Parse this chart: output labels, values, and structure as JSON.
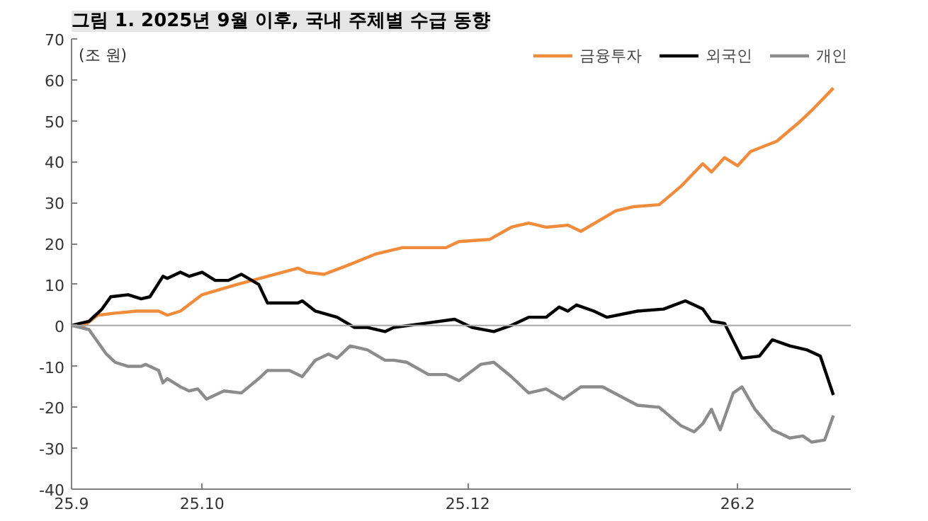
{
  "chart_data": {
    "type": "line",
    "title": "그림 1. 2025년 9월 이후, 국내 주체별 수급 동향",
    "ylabel": "(조 원)",
    "xlim": [
      "2025-09-01",
      "2026-02-27"
    ],
    "xticks": [
      {
        "value": "2025-09-01",
        "label": "25.9"
      },
      {
        "value": "2025-10-01",
        "label": "25.10"
      },
      {
        "value": "2025-12-01",
        "label": "25.12"
      },
      {
        "value": "2026-02-01",
        "label": "26.2"
      }
    ],
    "ylim": [
      -40,
      70
    ],
    "yticks": [
      -40,
      -30,
      -20,
      -10,
      0,
      10,
      20,
      30,
      40,
      50,
      60,
      70
    ],
    "legend": "top right",
    "line_style": "solid",
    "ref_lines": [
      {
        "axis": "y",
        "value": 0,
        "color": "#a6a6a6"
      }
    ],
    "series": [
      {
        "name": "금융투자",
        "color": "#f08c3c",
        "x": [
          "2025-09-01",
          "2025-09-04",
          "2025-09-07",
          "2025-09-11",
          "2025-09-16",
          "2025-09-21",
          "2025-09-23",
          "2025-09-26",
          "2025-10-01",
          "2025-10-09",
          "2025-10-16",
          "2025-10-23",
          "2025-10-25",
          "2025-10-29",
          "2025-11-03",
          "2025-11-10",
          "2025-11-16",
          "2025-11-26",
          "2025-11-29",
          "2025-12-06",
          "2025-12-11",
          "2025-12-15",
          "2025-12-19",
          "2025-12-24",
          "2025-12-27",
          "2026-01-04",
          "2026-01-08",
          "2026-01-14",
          "2026-01-19",
          "2026-01-24",
          "2026-01-26",
          "2026-01-29",
          "2026-02-01",
          "2026-02-04",
          "2026-02-10",
          "2026-02-15",
          "2026-02-18",
          "2026-02-23"
        ],
        "values": [
          0,
          0,
          2.5,
          3,
          3.5,
          3.5,
          2.5,
          3.5,
          7.5,
          10,
          12,
          14,
          13,
          12.5,
          14.5,
          17.5,
          19,
          19,
          20.5,
          21,
          24,
          25,
          24,
          24.5,
          23,
          28,
          29,
          29.5,
          34,
          39.5,
          37.5,
          41,
          39,
          42.5,
          45,
          49.5,
          52.5,
          58
        ]
      },
      {
        "name": "외국인",
        "color": "#000000",
        "x": [
          "2025-09-01",
          "2025-09-05",
          "2025-09-08",
          "2025-09-10",
          "2025-09-14",
          "2025-09-17",
          "2025-09-19",
          "2025-09-22",
          "2025-09-23",
          "2025-09-26",
          "2025-09-28",
          "2025-10-01",
          "2025-10-04",
          "2025-10-07",
          "2025-10-10",
          "2025-10-14",
          "2025-10-16",
          "2025-10-23",
          "2025-10-24",
          "2025-10-27",
          "2025-11-01",
          "2025-11-05",
          "2025-11-08",
          "2025-11-12",
          "2025-11-14",
          "2025-11-21",
          "2025-11-28",
          "2025-12-02",
          "2025-12-07",
          "2025-12-11",
          "2025-12-15",
          "2025-12-19",
          "2025-12-22",
          "2025-12-24",
          "2025-12-26",
          "2025-12-30",
          "2026-01-02",
          "2026-01-09",
          "2026-01-15",
          "2026-01-20",
          "2026-01-24",
          "2026-01-26",
          "2026-01-29",
          "2026-02-02",
          "2026-02-06",
          "2026-02-09",
          "2026-02-13",
          "2026-02-17",
          "2026-02-20",
          "2026-02-23"
        ],
        "values": [
          0,
          1,
          4,
          7,
          7.5,
          6.5,
          7,
          12,
          11.5,
          13,
          12,
          13,
          11,
          11,
          12.5,
          10,
          5.5,
          5.5,
          6,
          3.5,
          2,
          -0.5,
          -0.5,
          -1.5,
          -0.5,
          0.5,
          1.5,
          -0.5,
          -1.5,
          0,
          2,
          2,
          4.5,
          3.5,
          5,
          3.5,
          2,
          3.5,
          4,
          6,
          4,
          1,
          0.5,
          -8,
          -7.5,
          -3.5,
          -5,
          -6,
          -7.5,
          -17
        ]
      },
      {
        "name": "개인",
        "color": "#8c8c8c",
        "x": [
          "2025-09-01",
          "2025-09-05",
          "2025-09-09",
          "2025-09-11",
          "2025-09-14",
          "2025-09-17",
          "2025-09-18",
          "2025-09-21",
          "2025-09-22",
          "2025-09-23",
          "2025-09-26",
          "2025-09-28",
          "2025-09-30",
          "2025-10-02",
          "2025-10-06",
          "2025-10-10",
          "2025-10-14",
          "2025-10-16",
          "2025-10-21",
          "2025-10-24",
          "2025-10-27",
          "2025-10-30",
          "2025-11-01",
          "2025-11-04",
          "2025-11-08",
          "2025-11-12",
          "2025-11-14",
          "2025-11-17",
          "2025-11-22",
          "2025-11-26",
          "2025-11-29",
          "2025-12-04",
          "2025-12-07",
          "2025-12-11",
          "2025-12-15",
          "2025-12-19",
          "2025-12-23",
          "2025-12-27",
          "2026-01-01",
          "2026-01-09",
          "2026-01-14",
          "2026-01-19",
          "2026-01-22",
          "2026-01-24",
          "2026-01-26",
          "2026-01-28",
          "2026-01-31",
          "2026-02-02",
          "2026-02-05",
          "2026-02-09",
          "2026-02-13",
          "2026-02-16",
          "2026-02-18",
          "2026-02-21",
          "2026-02-23"
        ],
        "values": [
          0,
          -1,
          -7,
          -9,
          -10,
          -10,
          -9.5,
          -11,
          -14,
          -13,
          -15,
          -16,
          -15.5,
          -18,
          -16,
          -16.5,
          -13,
          -11,
          -11,
          -12.5,
          -8.5,
          -7,
          -8,
          -5,
          -6,
          -8.5,
          -8.5,
          -9,
          -12,
          -12,
          -13.5,
          -9.5,
          -9,
          -12.5,
          -16.5,
          -15.5,
          -18,
          -15,
          -15,
          -19.5,
          -20,
          -24.5,
          -26,
          -24,
          -20.5,
          -25.5,
          -16.5,
          -15,
          -20.5,
          -25.5,
          -27.5,
          -27,
          -28.5,
          -28,
          -22
        ]
      }
    ]
  }
}
